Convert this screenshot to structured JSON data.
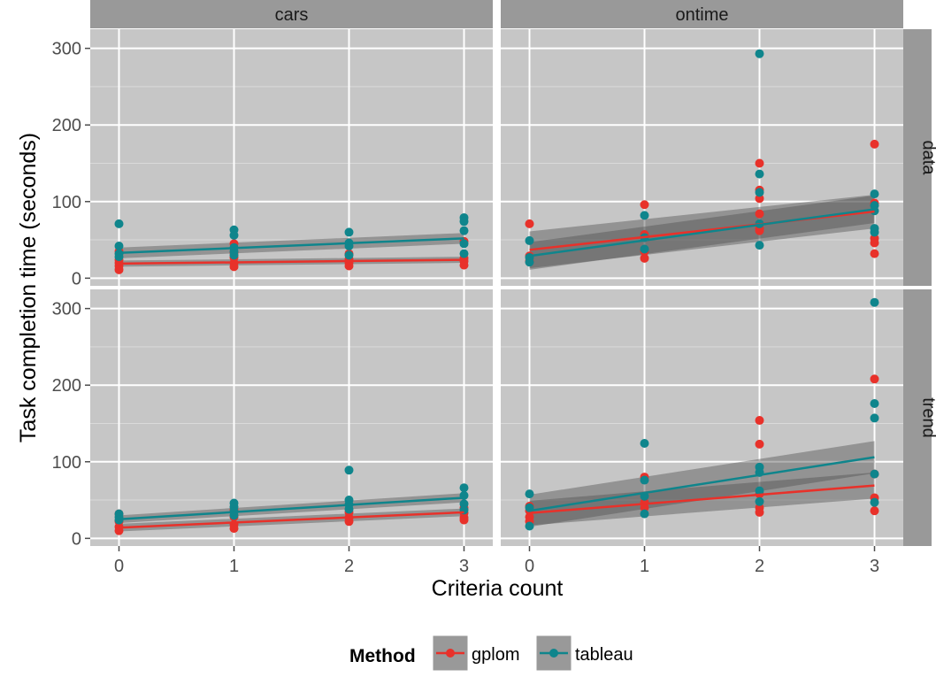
{
  "chart_data": {
    "type": "scatter",
    "xlabel": "Criteria count",
    "ylabel": "Task completion time (seconds)",
    "x_ticks": [
      "0",
      "1",
      "2",
      "3"
    ],
    "y_ticks": [
      "0",
      "100",
      "200",
      "300"
    ],
    "xlim": [
      -0.25,
      3.25
    ],
    "ylim": [
      -10,
      325
    ],
    "grid": true,
    "legend": {
      "title": "Method",
      "position": "bottom",
      "entries": [
        {
          "label": "gplom",
          "color": "#e8312a"
        },
        {
          "label": "tableau",
          "color": "#0f858c"
        }
      ]
    },
    "facet_columns": [
      "cars",
      "ontime"
    ],
    "facet_rows": [
      "data",
      "trend"
    ],
    "panels": [
      {
        "col": "cars",
        "row": "data",
        "series": [
          {
            "name": "gplom",
            "x": [
              0,
              0,
              0,
              0,
              0,
              1,
              1,
              1,
              1,
              1,
              2,
              2,
              2,
              2,
              3,
              3,
              3,
              3
            ],
            "y": [
              35,
              24,
              20,
              16,
              11,
              45,
              33,
              27,
              20,
              15,
              32,
              25,
              20,
              16,
              48,
              26,
              22,
              17
            ],
            "fit": [
              19,
              24
            ],
            "band": [
              4,
              4
            ]
          },
          {
            "name": "tableau",
            "x": [
              0,
              0,
              0,
              0,
              1,
              1,
              1,
              1,
              1,
              2,
              2,
              2,
              2,
              3,
              3,
              3,
              3,
              3
            ],
            "y": [
              71,
              42,
              32,
              28,
              63,
              56,
              40,
              35,
              30,
              60,
              46,
              42,
              30,
              79,
              74,
              62,
              45,
              32
            ],
            "fit": [
              33,
              52
            ],
            "band": [
              7,
              7
            ]
          }
        ]
      },
      {
        "col": "ontime",
        "row": "data",
        "series": [
          {
            "name": "gplom",
            "x": [
              0,
              0,
              0,
              1,
              1,
              1,
              1,
              2,
              2,
              2,
              2,
              2,
              2,
              3,
              3,
              3,
              3,
              3
            ],
            "y": [
              71,
              29,
              22,
              96,
              57,
              35,
              26,
              150,
              115,
              104,
              84,
              65,
              62,
              175,
              98,
              52,
              46,
              32
            ],
            "fit": [
              37,
              87
            ],
            "band": [
              24,
              22
            ]
          },
          {
            "name": "tableau",
            "x": [
              0,
              0,
              0,
              1,
              1,
              1,
              2,
              2,
              2,
              2,
              2,
              3,
              3,
              3,
              3,
              3
            ],
            "y": [
              49,
              27,
              21,
              82,
              53,
              38,
              293,
              136,
              112,
              71,
              43,
              110,
              95,
              88,
              65,
              60
            ],
            "fit": [
              29,
              90
            ],
            "band": [
              18,
              18
            ]
          }
        ]
      },
      {
        "col": "cars",
        "row": "trend",
        "series": [
          {
            "name": "gplom",
            "x": [
              0,
              0,
              0,
              0,
              1,
              1,
              1,
              1,
              2,
              2,
              2,
              3,
              3,
              3,
              3
            ],
            "y": [
              32,
              22,
              15,
              10,
              37,
              28,
              18,
              13,
              34,
              27,
              22,
              40,
              33,
              27,
              24
            ],
            "fit": [
              14,
              34
            ],
            "band": [
              5,
              5
            ]
          },
          {
            "name": "tableau",
            "x": [
              0,
              0,
              0,
              1,
              1,
              1,
              1,
              2,
              2,
              2,
              2,
              3,
              3,
              3,
              3
            ],
            "y": [
              32,
              28,
              24,
              46,
              41,
              35,
              30,
              89,
              50,
              44,
              38,
              66,
              56,
              45,
              37
            ],
            "fit": [
              25,
              53
            ],
            "band": [
              5,
              6
            ]
          }
        ]
      },
      {
        "col": "ontime",
        "row": "trend",
        "series": [
          {
            "name": "gplom",
            "x": [
              0,
              0,
              0,
              0,
              1,
              1,
              1,
              2,
              2,
              2,
              2,
              2,
              3,
              3,
              3,
              3
            ],
            "y": [
              42,
              36,
              28,
              22,
              80,
              47,
              40,
              154,
              123,
              58,
              40,
              34,
              208,
              84,
              53,
              36
            ],
            "fit": [
              33,
              69
            ],
            "band": [
              16,
              17
            ]
          },
          {
            "name": "tableau",
            "x": [
              0,
              0,
              0,
              1,
              1,
              1,
              1,
              2,
              2,
              2,
              2,
              3,
              3,
              3,
              3,
              3
            ],
            "y": [
              58,
              40,
              16,
              124,
              76,
              55,
              32,
              93,
              86,
              62,
              48,
              308,
              176,
              157,
              84,
              47
            ],
            "fit": [
              36,
              106
            ],
            "band": [
              21,
              21
            ]
          }
        ]
      }
    ]
  }
}
